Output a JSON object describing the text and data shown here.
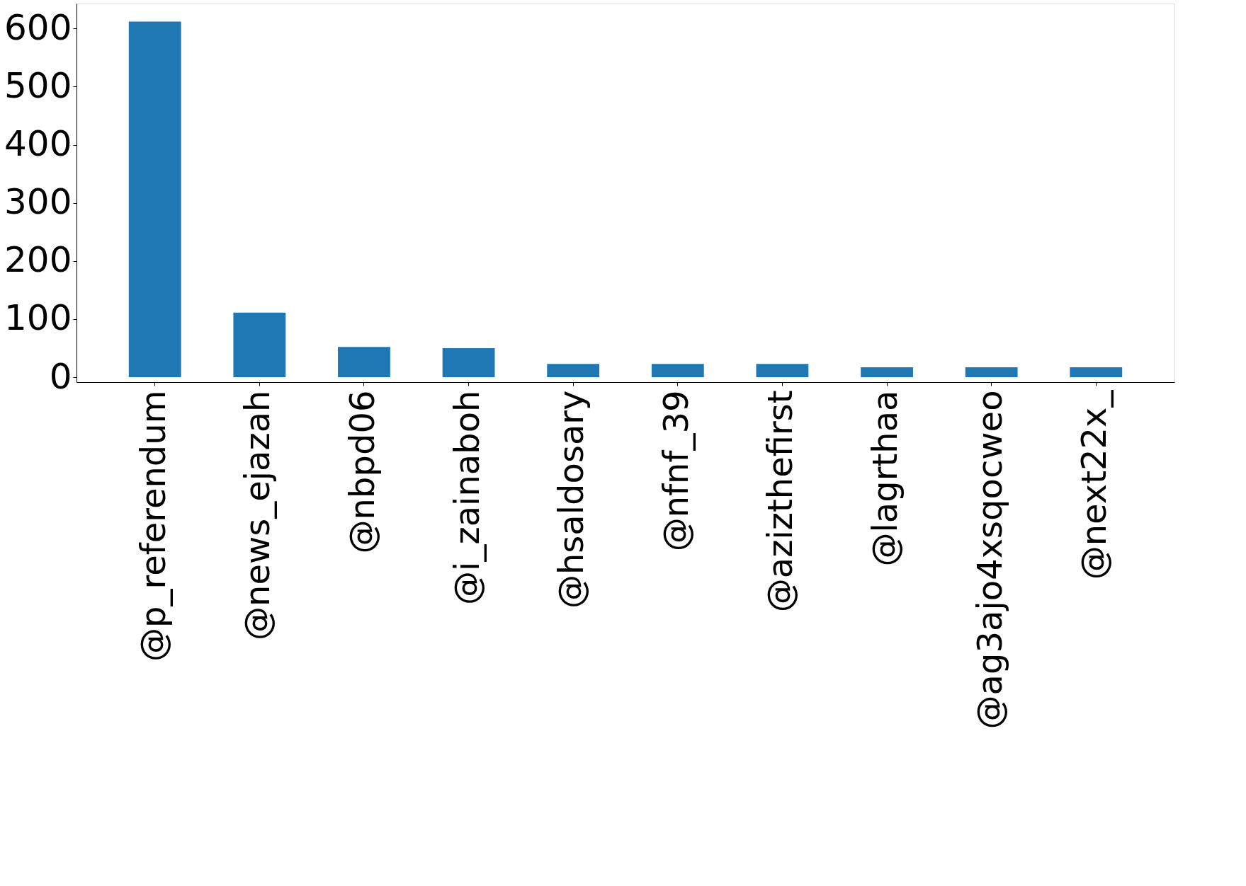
{
  "chart_data": {
    "type": "bar",
    "categories": [
      "@p_referendum",
      "@news_ejazah",
      "@nbpd06",
      "@i_zainaboh",
      "@hsaldosary",
      "@nfnf_39",
      "@azizthefirst",
      "@lagrthaa",
      "@ag3ajo4xsqocweo",
      "@next22x_"
    ],
    "values": [
      612,
      111,
      52,
      50,
      23,
      23,
      23,
      17,
      17,
      17
    ],
    "color": "#1f77b4",
    "ylim": [
      -8.5,
      643
    ],
    "yticks": [
      0,
      100,
      200,
      300,
      400,
      500,
      600
    ],
    "grid": false
  }
}
